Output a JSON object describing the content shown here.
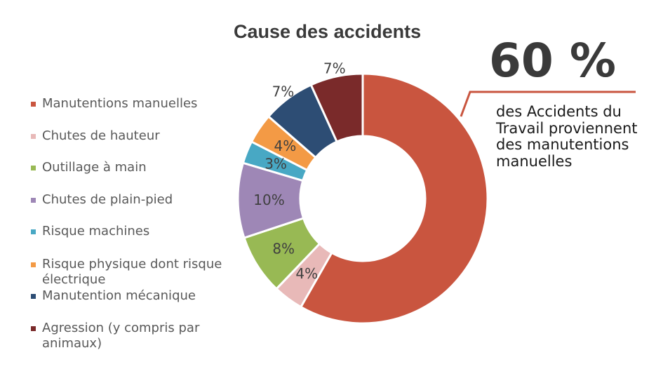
{
  "chart_data": {
    "type": "pie",
    "title": "Cause des accidents",
    "categories": [
      "Manutentions manuelles",
      "Chutes de hauteur",
      "Outillage à main",
      "Chutes de plain-pied",
      "Risque machines",
      "Risque physique dont risque électrique",
      "Manutention mécanique",
      "Agression (y compris par animaux)"
    ],
    "values": [
      60,
      4,
      8,
      10,
      3,
      4,
      7,
      7
    ],
    "value_labels": [
      "",
      "4%",
      "8%",
      "10%",
      "3%",
      "4%",
      "7%",
      "7%"
    ],
    "colors": [
      "#c9553f",
      "#e8b9b8",
      "#98b954",
      "#9e87b6",
      "#48a8c4",
      "#f39a45",
      "#2d4d74",
      "#7a2a2a"
    ],
    "legend_position": "left",
    "donut": true
  },
  "callout": {
    "big": "60 %",
    "text": "des Accidents du Travail proviennent des manutentions manuelles",
    "line_color": "#c9553f"
  }
}
